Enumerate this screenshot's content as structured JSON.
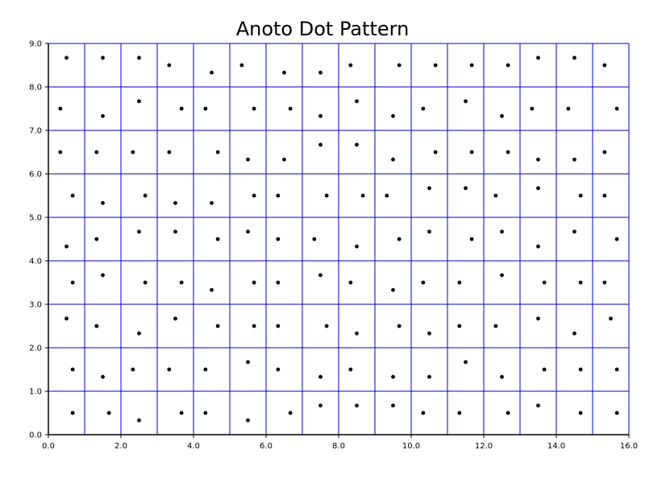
{
  "chart_data": {
    "type": "scatter",
    "title": "Anoto Dot Pattern",
    "xlabel": "",
    "ylabel": "",
    "xlim": [
      0,
      16
    ],
    "ylim": [
      0,
      9
    ],
    "grid": true,
    "grid_step": 1,
    "x_ticks": [
      0,
      2,
      4,
      6,
      8,
      10,
      12,
      14,
      16
    ],
    "x_tick_labels": [
      "0.0",
      "2.0",
      "4.0",
      "6.0",
      "8.0",
      "10.0",
      "12.0",
      "14.0",
      "16.0"
    ],
    "y_ticks": [
      0,
      1,
      2,
      3,
      4,
      5,
      6,
      7,
      8,
      9
    ],
    "y_tick_labels": [
      "0.0",
      "1.0",
      "2.0",
      "3.0",
      "4.0",
      "5.0",
      "6.0",
      "7.0",
      "8.0",
      "9.0"
    ],
    "colors": {
      "grid": "#0000cc",
      "axes": "#000000",
      "dots": "#000000"
    },
    "points": [
      [
        0.67,
        0.5
      ],
      [
        1.67,
        0.5
      ],
      [
        2.5,
        0.33
      ],
      [
        3.67,
        0.5
      ],
      [
        4.33,
        0.5
      ],
      [
        5.5,
        0.33
      ],
      [
        6.67,
        0.5
      ],
      [
        7.5,
        0.67
      ],
      [
        8.5,
        0.67
      ],
      [
        9.5,
        0.67
      ],
      [
        10.33,
        0.5
      ],
      [
        11.33,
        0.5
      ],
      [
        12.67,
        0.5
      ],
      [
        13.5,
        0.67
      ],
      [
        14.67,
        0.5
      ],
      [
        15.67,
        0.5
      ],
      [
        0.67,
        1.5
      ],
      [
        1.5,
        1.33
      ],
      [
        2.33,
        1.5
      ],
      [
        3.33,
        1.5
      ],
      [
        4.33,
        1.5
      ],
      [
        5.5,
        1.67
      ],
      [
        6.33,
        1.5
      ],
      [
        7.5,
        1.33
      ],
      [
        8.33,
        1.5
      ],
      [
        9.5,
        1.33
      ],
      [
        10.5,
        1.33
      ],
      [
        11.5,
        1.67
      ],
      [
        12.5,
        1.33
      ],
      [
        13.67,
        1.5
      ],
      [
        14.67,
        1.5
      ],
      [
        15.67,
        1.5
      ],
      [
        0.5,
        2.67
      ],
      [
        1.33,
        2.5
      ],
      [
        2.5,
        2.33
      ],
      [
        3.5,
        2.67
      ],
      [
        4.67,
        2.5
      ],
      [
        5.67,
        2.5
      ],
      [
        6.33,
        2.5
      ],
      [
        7.67,
        2.5
      ],
      [
        8.5,
        2.33
      ],
      [
        9.67,
        2.5
      ],
      [
        10.5,
        2.33
      ],
      [
        11.33,
        2.5
      ],
      [
        12.33,
        2.5
      ],
      [
        13.5,
        2.67
      ],
      [
        14.5,
        2.33
      ],
      [
        15.5,
        2.67
      ],
      [
        0.67,
        3.5
      ],
      [
        1.5,
        3.67
      ],
      [
        2.67,
        3.5
      ],
      [
        3.67,
        3.5
      ],
      [
        4.5,
        3.33
      ],
      [
        5.67,
        3.5
      ],
      [
        6.33,
        3.5
      ],
      [
        7.5,
        3.67
      ],
      [
        8.33,
        3.5
      ],
      [
        9.5,
        3.33
      ],
      [
        10.33,
        3.5
      ],
      [
        11.33,
        3.5
      ],
      [
        12.5,
        3.67
      ],
      [
        13.67,
        3.5
      ],
      [
        14.67,
        3.5
      ],
      [
        15.33,
        3.5
      ],
      [
        0.5,
        4.33
      ],
      [
        1.33,
        4.5
      ],
      [
        2.5,
        4.67
      ],
      [
        3.5,
        4.67
      ],
      [
        4.67,
        4.5
      ],
      [
        5.5,
        4.67
      ],
      [
        6.33,
        4.5
      ],
      [
        7.33,
        4.5
      ],
      [
        8.5,
        4.33
      ],
      [
        9.67,
        4.5
      ],
      [
        10.5,
        4.67
      ],
      [
        11.67,
        4.5
      ],
      [
        12.5,
        4.67
      ],
      [
        13.5,
        4.33
      ],
      [
        14.5,
        4.67
      ],
      [
        15.67,
        4.5
      ],
      [
        0.67,
        5.5
      ],
      [
        1.5,
        5.33
      ],
      [
        2.67,
        5.5
      ],
      [
        3.5,
        5.33
      ],
      [
        4.5,
        5.33
      ],
      [
        5.67,
        5.5
      ],
      [
        6.33,
        5.5
      ],
      [
        7.67,
        5.5
      ],
      [
        8.67,
        5.5
      ],
      [
        9.33,
        5.5
      ],
      [
        10.5,
        5.67
      ],
      [
        11.5,
        5.67
      ],
      [
        12.33,
        5.5
      ],
      [
        13.5,
        5.67
      ],
      [
        14.67,
        5.5
      ],
      [
        15.33,
        5.5
      ],
      [
        0.33,
        6.5
      ],
      [
        1.33,
        6.5
      ],
      [
        2.33,
        6.5
      ],
      [
        3.33,
        6.5
      ],
      [
        4.67,
        6.5
      ],
      [
        5.5,
        6.33
      ],
      [
        6.5,
        6.33
      ],
      [
        7.5,
        6.67
      ],
      [
        8.5,
        6.67
      ],
      [
        9.5,
        6.33
      ],
      [
        10.67,
        6.5
      ],
      [
        11.67,
        6.5
      ],
      [
        12.67,
        6.5
      ],
      [
        13.5,
        6.33
      ],
      [
        14.5,
        6.33
      ],
      [
        15.33,
        6.5
      ],
      [
        0.33,
        7.5
      ],
      [
        1.5,
        7.33
      ],
      [
        2.5,
        7.67
      ],
      [
        3.67,
        7.5
      ],
      [
        4.33,
        7.5
      ],
      [
        5.67,
        7.5
      ],
      [
        6.67,
        7.5
      ],
      [
        7.5,
        7.33
      ],
      [
        8.5,
        7.67
      ],
      [
        9.5,
        7.33
      ],
      [
        10.33,
        7.5
      ],
      [
        11.5,
        7.67
      ],
      [
        12.5,
        7.33
      ],
      [
        13.33,
        7.5
      ],
      [
        14.33,
        7.5
      ],
      [
        15.67,
        7.5
      ],
      [
        0.5,
        8.67
      ],
      [
        1.5,
        8.67
      ],
      [
        2.5,
        8.67
      ],
      [
        3.33,
        8.5
      ],
      [
        4.5,
        8.33
      ],
      [
        5.33,
        8.5
      ],
      [
        6.5,
        8.33
      ],
      [
        7.5,
        8.33
      ],
      [
        8.33,
        8.5
      ],
      [
        9.67,
        8.5
      ],
      [
        10.67,
        8.5
      ],
      [
        11.67,
        8.5
      ],
      [
        12.67,
        8.5
      ],
      [
        13.5,
        8.67
      ],
      [
        14.5,
        8.67
      ],
      [
        15.33,
        8.5
      ]
    ]
  }
}
